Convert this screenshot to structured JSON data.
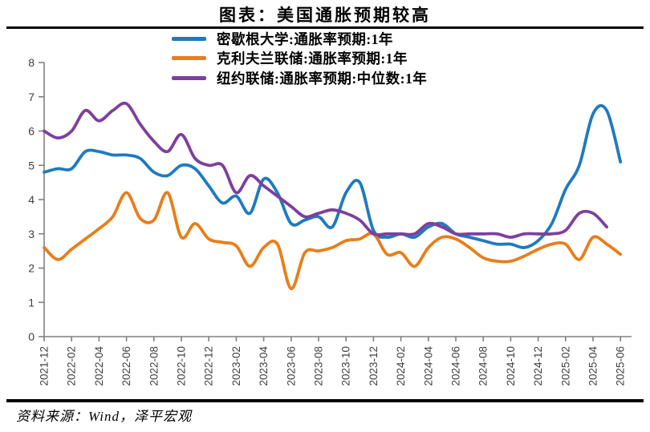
{
  "page": {
    "title": "图表：美国通胀预期较高",
    "source": "资料来源：Wind，泽平宏观"
  },
  "chart_data": {
    "type": "line",
    "title": "图表：美国通胀预期较高",
    "source": "资料来源：Wind，泽平宏观",
    "grid": false,
    "legend_position": "top-center",
    "ylim": [
      0,
      8
    ],
    "y_ticks": [
      0,
      1,
      2,
      3,
      4,
      5,
      6,
      7,
      8
    ],
    "x": [
      "2021-12",
      "2022-01",
      "2022-02",
      "2022-03",
      "2022-04",
      "2022-05",
      "2022-06",
      "2022-07",
      "2022-08",
      "2022-09",
      "2022-10",
      "2022-11",
      "2022-12",
      "2023-01",
      "2023-02",
      "2023-03",
      "2023-04",
      "2023-05",
      "2023-06",
      "2023-07",
      "2023-08",
      "2023-09",
      "2023-10",
      "2023-11",
      "2023-12",
      "2024-01",
      "2024-02",
      "2024-03",
      "2024-04",
      "2024-05",
      "2024-06",
      "2024-07",
      "2024-08",
      "2024-09",
      "2024-10",
      "2024-11",
      "2024-12",
      "2025-01",
      "2025-02",
      "2025-03",
      "2025-04",
      "2025-05",
      "2025-06"
    ],
    "x_tick_labels": [
      "2021-12",
      "2022-02",
      "2022-04",
      "2022-06",
      "2022-08",
      "2022-10",
      "2022-12",
      "2023-02",
      "2023-04",
      "2023-06",
      "2023-08",
      "2023-10",
      "2023-12",
      "2024-02",
      "2024-04",
      "2024-06",
      "2024-08",
      "2024-10",
      "2024-12",
      "2025-02",
      "2025-04",
      "2025-06"
    ],
    "series": [
      {
        "name": "密歇根大学:通胀率预期:1年",
        "color": "#1F7ABE",
        "values": [
          4.8,
          4.9,
          4.9,
          5.4,
          5.4,
          5.3,
          5.3,
          5.2,
          4.8,
          4.7,
          5.0,
          4.9,
          4.4,
          3.9,
          4.1,
          3.6,
          4.6,
          4.2,
          3.3,
          3.4,
          3.5,
          3.2,
          4.2,
          4.5,
          3.1,
          2.9,
          3.0,
          2.9,
          3.2,
          3.3,
          3.0,
          2.9,
          2.8,
          2.7,
          2.7,
          2.6,
          2.8,
          3.3,
          4.3,
          5.0,
          6.5,
          6.6,
          5.1
        ]
      },
      {
        "name": "克利夫兰联储:通胀率预期:1年",
        "color": "#E87E1A",
        "values": [
          2.6,
          2.25,
          2.55,
          2.85,
          3.15,
          3.5,
          4.2,
          3.45,
          3.4,
          4.2,
          2.9,
          3.3,
          2.85,
          2.75,
          2.65,
          2.05,
          2.6,
          2.7,
          1.4,
          2.45,
          2.5,
          2.6,
          2.8,
          2.85,
          3.0,
          2.4,
          2.45,
          2.05,
          2.6,
          2.9,
          2.85,
          2.6,
          2.3,
          2.2,
          2.2,
          2.35,
          2.55,
          2.7,
          2.7,
          2.25,
          2.9,
          2.7,
          2.4
        ]
      },
      {
        "name": "纽约联储:通胀率预期:中位数:1年",
        "color": "#7E3F9D",
        "values": [
          6.0,
          5.8,
          6.0,
          6.6,
          6.3,
          6.6,
          6.8,
          6.2,
          5.7,
          5.4,
          5.9,
          5.2,
          5.0,
          5.0,
          4.2,
          4.7,
          4.4,
          4.1,
          3.8,
          3.5,
          3.6,
          3.7,
          3.6,
          3.4,
          3.0,
          3.0,
          3.0,
          3.0,
          3.3,
          3.2,
          3.0,
          3.0,
          3.0,
          3.0,
          2.9,
          3.0,
          3.0,
          3.0,
          3.1,
          3.6,
          3.6,
          3.2,
          null
        ]
      }
    ],
    "axis_label_color": "#3F3F3F",
    "axis_line_color": "#808080"
  }
}
